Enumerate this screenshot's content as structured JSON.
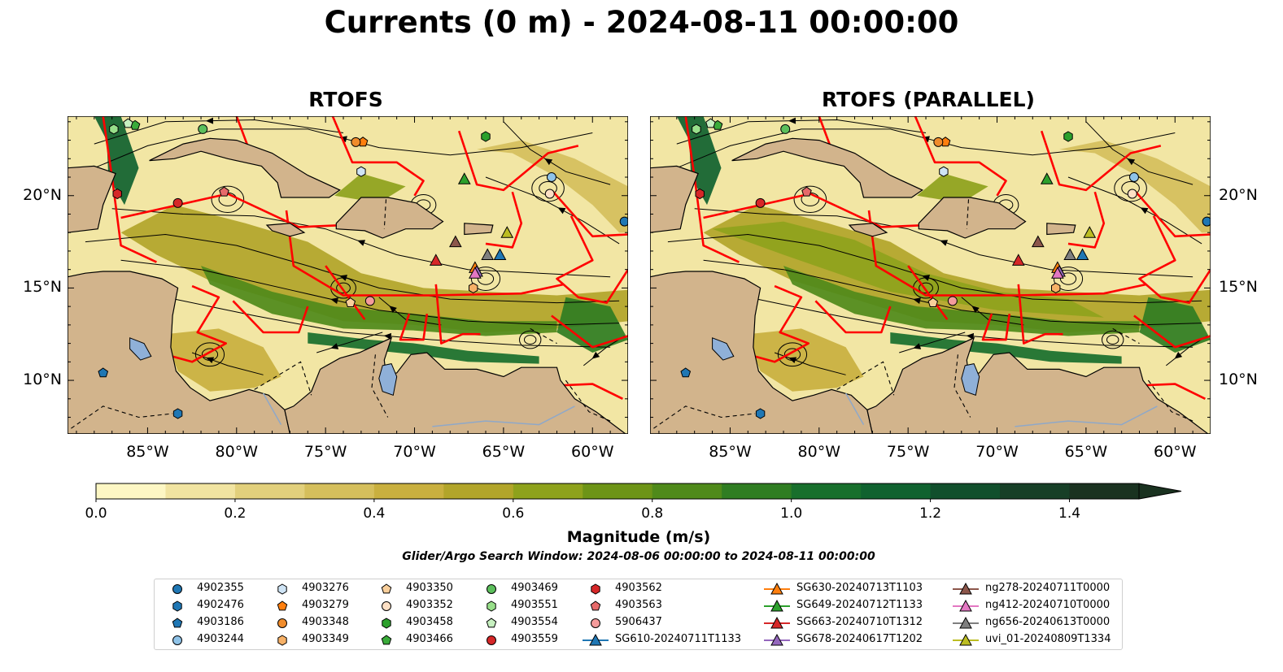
{
  "title": "Currents (0 m) - 2024-08-11 00:00:00",
  "panels": [
    {
      "title": "RTOFS"
    },
    {
      "title": "RTOFS (PARALLEL)"
    }
  ],
  "colors": {
    "land": "#d2b48c",
    "lakes": "#8fb0d8",
    "boundaries": "#ff0000",
    "streamlines": "#000000",
    "colormap": [
      "#fdf7c4",
      "#f1e4a1",
      "#e2d07c",
      "#d5bf5c",
      "#c9b03f",
      "#b2a52a",
      "#8ea21c",
      "#6d9417",
      "#4f8a1a",
      "#2f7d22",
      "#186f2c",
      "#10622f",
      "#114f2c",
      "#173f27",
      "#1a3220"
    ]
  },
  "chart_data": {
    "type": "heatmap",
    "variable": "Currents (0 m)",
    "date": "2024-08-11 00:00:00",
    "x_ticks": [
      "85°W",
      "80°W",
      "75°W",
      "70°W",
      "65°W",
      "60°W"
    ],
    "x_tick_values": [
      -85,
      -80,
      -75,
      -70,
      -65,
      -60
    ],
    "y_ticks": [
      "10°N",
      "15°N",
      "20°N"
    ],
    "y_tick_values": [
      10,
      15,
      20
    ],
    "xlim": [
      -89.5,
      -58
    ],
    "ylim": [
      7.1,
      24.3
    ],
    "colorbar": {
      "label": "Magnitude (m/s)",
      "ticks": [
        "0.0",
        "0.2",
        "0.4",
        "0.6",
        "0.8",
        "1.0",
        "1.2",
        "1.4"
      ],
      "range": [
        0,
        1.5
      ],
      "step": 0.1,
      "extend": "max"
    },
    "search_window": "Glider/Argo Search Window: 2024-08-06 00:00:00 to 2024-08-11 00:00:00",
    "argo_floats": [
      {
        "id": "4902355",
        "color": "#1f77b4",
        "marker": "circle",
        "lon": -58.2,
        "lat": 18.6
      },
      {
        "id": "4902476",
        "color": "#1f77b4",
        "marker": "hexagon",
        "lon": -83.3,
        "lat": 8.2
      },
      {
        "id": "4903186",
        "color": "#1f77b4",
        "marker": "pentagon",
        "lon": -87.5,
        "lat": 10.4
      },
      {
        "id": "4903244",
        "color": "#8fc3e8",
        "marker": "circle",
        "lon": -62.3,
        "lat": 21.0
      },
      {
        "id": "4903276",
        "color": "#cfe4f5",
        "marker": "hexagon",
        "lon": -73.0,
        "lat": 21.3
      },
      {
        "id": "4903279",
        "color": "#ff7f0e",
        "marker": "pentagon",
        "lon": -72.9,
        "lat": 22.9
      },
      {
        "id": "4903348",
        "color": "#f08c2c",
        "marker": "circle",
        "lon": -73.3,
        "lat": 22.9
      },
      {
        "id": "4903349",
        "color": "#f7b167",
        "marker": "hexagon",
        "lon": -66.7,
        "lat": 15.0
      },
      {
        "id": "4903350",
        "color": "#f9cf9b",
        "marker": "pentagon",
        "lon": -73.6,
        "lat": 14.2
      },
      {
        "id": "4903352",
        "color": "#fde0c5",
        "marker": "circle",
        "lon": -62.4,
        "lat": 20.1
      },
      {
        "id": "4903458",
        "color": "#2ca02c",
        "marker": "hexagon",
        "lon": -66.0,
        "lat": 23.2
      },
      {
        "id": "4903466",
        "color": "#3aab3a",
        "marker": "pentagon",
        "lon": -85.7,
        "lat": 23.8
      },
      {
        "id": "4903469",
        "color": "#5cbf5c",
        "marker": "circle",
        "lon": -81.9,
        "lat": 23.6
      },
      {
        "id": "4903551",
        "color": "#98df8a",
        "marker": "hexagon",
        "lon": -86.9,
        "lat": 23.6
      },
      {
        "id": "4903554",
        "color": "#c7f0c0",
        "marker": "pentagon",
        "lon": -86.1,
        "lat": 23.9
      },
      {
        "id": "4903559",
        "color": "#d62728",
        "marker": "circle",
        "lon": -83.3,
        "lat": 19.6
      },
      {
        "id": "4903562",
        "color": "#d62728",
        "marker": "hexagon",
        "lon": -86.7,
        "lat": 20.1
      },
      {
        "id": "4903563",
        "color": "#e66a6a",
        "marker": "pentagon",
        "lon": -80.7,
        "lat": 20.2
      },
      {
        "id": "5906437",
        "color": "#f49b9b",
        "marker": "circle",
        "lon": -72.5,
        "lat": 14.3
      }
    ],
    "gliders": [
      {
        "id": "SG610-20240711T1133",
        "color": "#1f77b4",
        "lon": -65.2,
        "lat": 16.8
      },
      {
        "id": "SG630-20240713T1103",
        "color": "#ff7f0e",
        "lon": -66.6,
        "lat": 16.1
      },
      {
        "id": "SG649-20240712T1133",
        "color": "#2ca02c",
        "lon": -67.2,
        "lat": 20.9
      },
      {
        "id": "SG663-20240710T1312",
        "color": "#d62728",
        "lon": -68.8,
        "lat": 16.5
      },
      {
        "id": "SG678-20240617T1202",
        "color": "#9467bd",
        "lon": -66.5,
        "lat": 15.9
      },
      {
        "id": "ng278-20240711T0000",
        "color": "#8c564b",
        "lon": -67.7,
        "lat": 17.5
      },
      {
        "id": "ng412-20240710T0000",
        "color": "#e377c2",
        "lon": -66.6,
        "lat": 15.8
      },
      {
        "id": "ng656-20240613T0000",
        "color": "#7f7f7f",
        "lon": -65.9,
        "lat": 16.8
      },
      {
        "id": "uvi_01-20240809T1334",
        "color": "#bcbd22",
        "lon": -64.8,
        "lat": 18.0
      }
    ]
  },
  "legend_columns": [
    [
      "4902355",
      "4902476",
      "4903186",
      "4903244"
    ],
    [
      "4903276",
      "4903279",
      "4903348",
      "4903349"
    ],
    [
      "4903350",
      "4903352",
      "4903458",
      "4903466"
    ],
    [
      "4903469",
      "4903551",
      "4903554",
      "4903559"
    ],
    [
      "4903562",
      "4903563",
      "5906437",
      "SG610-20240711T1133"
    ],
    [
      "SG630-20240713T1103",
      "SG649-20240712T1133",
      "SG663-20240710T1312",
      "SG678-20240617T1202"
    ],
    [
      "ng278-20240711T0000",
      "ng412-20240710T0000",
      "ng656-20240613T0000",
      "uvi_01-20240809T1334"
    ]
  ]
}
